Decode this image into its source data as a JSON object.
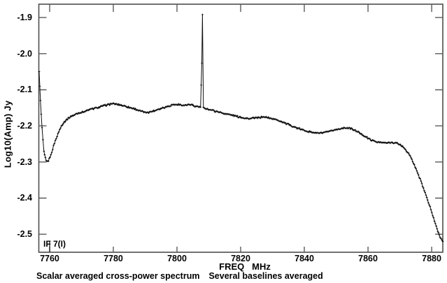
{
  "figure": {
    "background": "#ffffff",
    "frame_color": "#4e4e4e",
    "tick_color": "#5a5a5a",
    "data_color": "#0d0d0d",
    "text_color": "#000000"
  },
  "chart_data": {
    "type": "line",
    "title": "",
    "xlabel": "FREQ   MHz",
    "ylabel": "Log10(Amp) Jy",
    "annotation": "IF 7(I)",
    "caption_left": "Scalar averaged cross-power spectrum",
    "caption_right": "Several baselines averaged",
    "marker": "+",
    "grid": false,
    "legend": null,
    "xlim": [
      7756.6,
      7883.5
    ],
    "ylim": [
      -2.55,
      -1.863
    ],
    "x_ticks": [
      7760,
      7780,
      7800,
      7820,
      7840,
      7860,
      7880
    ],
    "y_ticks": [
      -1.9,
      -2.0,
      -2.1,
      -2.2,
      -2.3,
      -2.4,
      -2.5
    ],
    "spike": {
      "freq": 7808,
      "peak": -1.89,
      "mid_point": -2.026
    },
    "left_dip": {
      "freq": 7759,
      "min": -2.3
    },
    "right_rolloff_end": {
      "freq": 7883.5,
      "value": -2.52
    },
    "noise_amplitude": 0.0035,
    "if_marker_freq": 7760,
    "series": [
      {
        "name": "scalar averaged cross-power spectrum",
        "points": [
          [
            7756.7,
            -2.05
          ],
          [
            7757.1,
            -2.13
          ],
          [
            7757.6,
            -2.205
          ],
          [
            7758.2,
            -2.272
          ],
          [
            7758.9,
            -2.298
          ],
          [
            7759.6,
            -2.297
          ],
          [
            7760.4,
            -2.28
          ],
          [
            7761.5,
            -2.248
          ],
          [
            7762.6,
            -2.222
          ],
          [
            7763.7,
            -2.2
          ],
          [
            7765.1,
            -2.184
          ],
          [
            7766.4,
            -2.175
          ],
          [
            7768.6,
            -2.166
          ],
          [
            7770.8,
            -2.16
          ],
          [
            7773.0,
            -2.154
          ],
          [
            7775.2,
            -2.149
          ],
          [
            7777.4,
            -2.143
          ],
          [
            7779.6,
            -2.139
          ],
          [
            7781.8,
            -2.141
          ],
          [
            7784.0,
            -2.146
          ],
          [
            7786.2,
            -2.152
          ],
          [
            7788.4,
            -2.158
          ],
          [
            7790.1,
            -2.163
          ],
          [
            7791.9,
            -2.161
          ],
          [
            7794.1,
            -2.154
          ],
          [
            7796.3,
            -2.148
          ],
          [
            7798.5,
            -2.142
          ],
          [
            7800.2,
            -2.141
          ],
          [
            7802.0,
            -2.143
          ],
          [
            7804.0,
            -2.141
          ],
          [
            7805.9,
            -2.146
          ],
          [
            7807.4,
            -2.148
          ],
          [
            7807.8,
            -2.026
          ],
          [
            7808.0,
            -1.892
          ],
          [
            7808.3,
            -2.15
          ],
          [
            7809.5,
            -2.153
          ],
          [
            7811.6,
            -2.158
          ],
          [
            7813.8,
            -2.163
          ],
          [
            7816.0,
            -2.168
          ],
          [
            7818.2,
            -2.172
          ],
          [
            7820.4,
            -2.177
          ],
          [
            7822.6,
            -2.18
          ],
          [
            7824.8,
            -2.178
          ],
          [
            7827.0,
            -2.175
          ],
          [
            7829.2,
            -2.178
          ],
          [
            7831.4,
            -2.183
          ],
          [
            7833.6,
            -2.191
          ],
          [
            7835.8,
            -2.199
          ],
          [
            7838.0,
            -2.207
          ],
          [
            7840.2,
            -2.213
          ],
          [
            7842.4,
            -2.218
          ],
          [
            7844.6,
            -2.22
          ],
          [
            7846.8,
            -2.218
          ],
          [
            7849.0,
            -2.213
          ],
          [
            7851.2,
            -2.208
          ],
          [
            7852.7,
            -2.205
          ],
          [
            7854.5,
            -2.207
          ],
          [
            7856.5,
            -2.215
          ],
          [
            7858.7,
            -2.227
          ],
          [
            7860.9,
            -2.239
          ],
          [
            7863.1,
            -2.245
          ],
          [
            7865.3,
            -2.247
          ],
          [
            7867.0,
            -2.246
          ],
          [
            7868.6,
            -2.247
          ],
          [
            7870.1,
            -2.252
          ],
          [
            7871.6,
            -2.263
          ],
          [
            7873.0,
            -2.28
          ],
          [
            7874.3,
            -2.303
          ],
          [
            7875.6,
            -2.33
          ],
          [
            7876.9,
            -2.36
          ],
          [
            7878.2,
            -2.392
          ],
          [
            7879.5,
            -2.425
          ],
          [
            7880.6,
            -2.455
          ],
          [
            7881.7,
            -2.485
          ],
          [
            7882.6,
            -2.506
          ],
          [
            7883.3,
            -2.518
          ],
          [
            7883.5,
            -2.52
          ]
        ]
      }
    ]
  }
}
